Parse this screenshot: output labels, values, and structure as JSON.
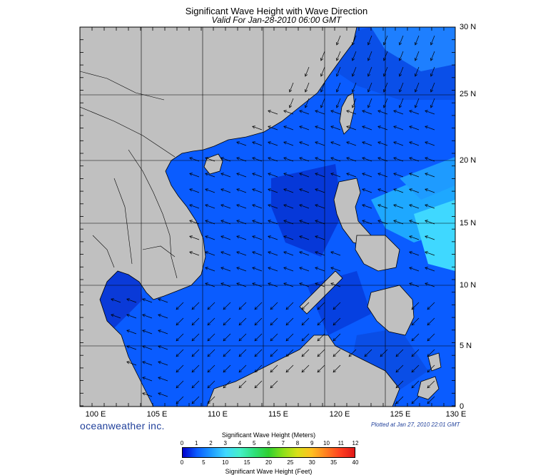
{
  "title": "Significant Wave Height with Wave Direction",
  "subtitle": "Valid For Jan-28-2010 06:00 GMT",
  "lon_labels": [
    "100 E",
    "105 E",
    "110 E",
    "115 E",
    "120 E",
    "125 E",
    "130 E"
  ],
  "lat_labels": [
    "30 N",
    "25 N",
    "20 N",
    "15 N",
    "10 N",
    "5 N",
    "0"
  ],
  "brand": "oceanweather inc.",
  "plotted": "Plotted at Jan 27, 2010 22:01 GMT",
  "colorbar": {
    "title_meters": "Significant Wave Height (Meters)",
    "title_feet": "Significant Wave Height (Feet)",
    "meters_ticks": [
      "0",
      "1",
      "2",
      "3",
      "4",
      "5",
      "6",
      "7",
      "8",
      "9",
      "10",
      "11",
      "12"
    ],
    "feet_ticks": [
      "0",
      "5",
      "10",
      "15",
      "20",
      "25",
      "30",
      "35",
      "40"
    ],
    "colors": [
      "#0000cc",
      "#0a5cff",
      "#1e9bff",
      "#3fd8ff",
      "#45f0c8",
      "#2fe07a",
      "#30d030",
      "#8be01a",
      "#d8e018",
      "#ffc020",
      "#ff8020",
      "#ff4020",
      "#e01818"
    ]
  },
  "colors": {
    "land": "#c0c0c0",
    "sea_base": "#0a5cff",
    "sea_deep": "#0000cc",
    "sea_light": "#3fd8ff"
  }
}
